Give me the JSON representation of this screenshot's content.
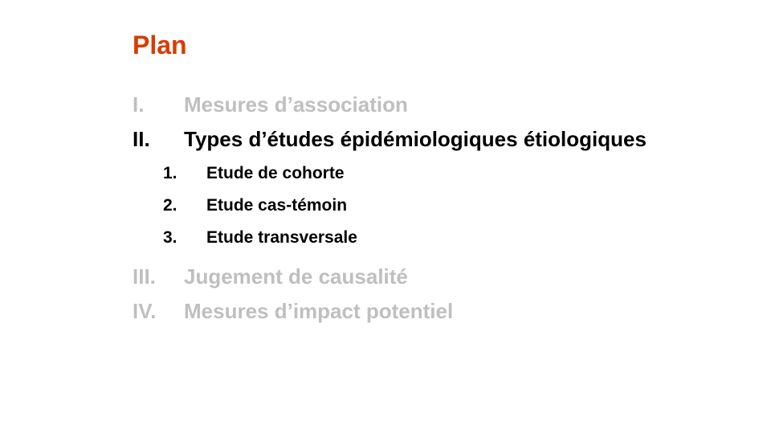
{
  "slide": {
    "title": "Plan",
    "title_color": "#d83b01",
    "muted_color": "#bfbfbf",
    "outline": [
      {
        "num": "I.",
        "label": "Mesures d’association",
        "state": "muted"
      },
      {
        "num": "II.",
        "label": "Types d’études épidémiologiques étiologiques",
        "state": "active",
        "subitems": [
          {
            "num": "1.",
            "label": "Etude de cohorte"
          },
          {
            "num": "2.",
            "label": "Etude cas-témoin"
          },
          {
            "num": "3.",
            "label": "Etude transversale"
          }
        ]
      },
      {
        "num": "III.",
        "label": "Jugement de causalité",
        "state": "muted"
      },
      {
        "num": "IV.",
        "label": "Mesures d’impact potentiel",
        "state": "muted"
      }
    ]
  }
}
